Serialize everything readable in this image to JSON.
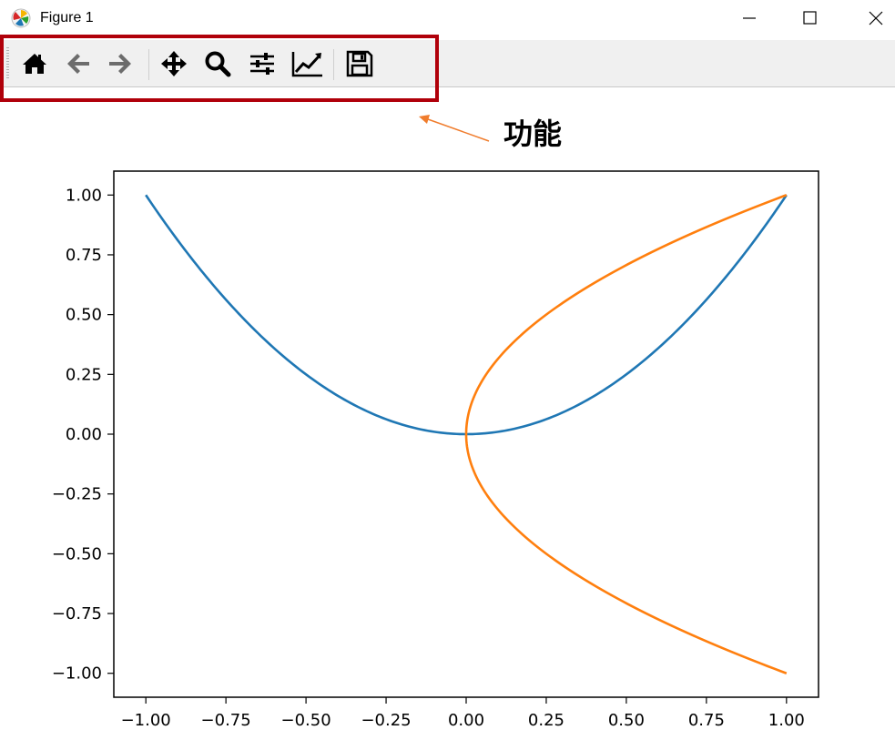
{
  "window": {
    "title": "Figure 1",
    "controls": [
      "minimize",
      "maximize",
      "close"
    ]
  },
  "toolbar": {
    "buttons": [
      {
        "icon": "home-icon",
        "name": "Home"
      },
      {
        "icon": "back-arrow-icon",
        "name": "Back"
      },
      {
        "icon": "forward-arrow-icon",
        "name": "Forward"
      },
      {
        "icon": "pan-move-icon",
        "name": "Pan"
      },
      {
        "icon": "zoom-magnifier-icon",
        "name": "Zoom"
      },
      {
        "icon": "subplots-sliders-icon",
        "name": "Subplots"
      },
      {
        "icon": "edit-axis-icon",
        "name": "Customize"
      },
      {
        "icon": "save-floppy-icon",
        "name": "Save"
      }
    ]
  },
  "annotation": {
    "text": "功能",
    "highlight_color": "#b0000a",
    "arrow_color": "#f07c2c"
  },
  "chart_data": {
    "type": "line",
    "title": "",
    "xlabel": "",
    "ylabel": "",
    "xlim": [
      -1.1,
      1.1
    ],
    "ylim": [
      -1.1,
      1.1
    ],
    "xticks": [
      -1.0,
      -0.75,
      -0.5,
      -0.25,
      0.0,
      0.25,
      0.5,
      0.75,
      1.0
    ],
    "xtick_labels": [
      "−1.00",
      "−0.75",
      "−0.50",
      "−0.25",
      "0.00",
      "0.25",
      "0.50",
      "0.75",
      "1.00"
    ],
    "yticks": [
      1.0,
      0.75,
      0.5,
      0.25,
      0.0,
      -0.25,
      -0.5,
      -0.75,
      -1.0
    ],
    "ytick_labels": [
      "1.00",
      "0.75",
      "0.50",
      "0.25",
      "0.00",
      "−0.25",
      "−0.50",
      "−0.75",
      "−1.00"
    ],
    "grid": false,
    "series": [
      {
        "color": "#1f77b4",
        "x": [
          -1.0,
          -0.9,
          -0.8,
          -0.7,
          -0.6,
          -0.5,
          -0.4,
          -0.3,
          -0.2,
          -0.1,
          0.0,
          0.1,
          0.2,
          0.3,
          0.4,
          0.5,
          0.6,
          0.7,
          0.8,
          0.9,
          1.0
        ],
        "y": [
          1.0,
          0.81,
          0.64,
          0.49,
          0.36,
          0.25,
          0.16,
          0.09,
          0.04,
          0.01,
          0.0,
          0.01,
          0.04,
          0.09,
          0.16,
          0.25,
          0.36,
          0.49,
          0.64,
          0.81,
          1.0
        ]
      },
      {
        "color": "#ff7f0e",
        "x": [
          1.0,
          0.81,
          0.64,
          0.49,
          0.36,
          0.25,
          0.16,
          0.09,
          0.04,
          0.01,
          0.0,
          0.01,
          0.04,
          0.09,
          0.16,
          0.25,
          0.36,
          0.49,
          0.64,
          0.81,
          1.0
        ],
        "y": [
          -1.0,
          -0.9,
          -0.8,
          -0.7,
          -0.6,
          -0.5,
          -0.4,
          -0.3,
          -0.2,
          -0.1,
          0.0,
          0.1,
          0.2,
          0.3,
          0.4,
          0.5,
          0.6,
          0.7,
          0.8,
          0.9,
          1.0
        ]
      }
    ]
  }
}
